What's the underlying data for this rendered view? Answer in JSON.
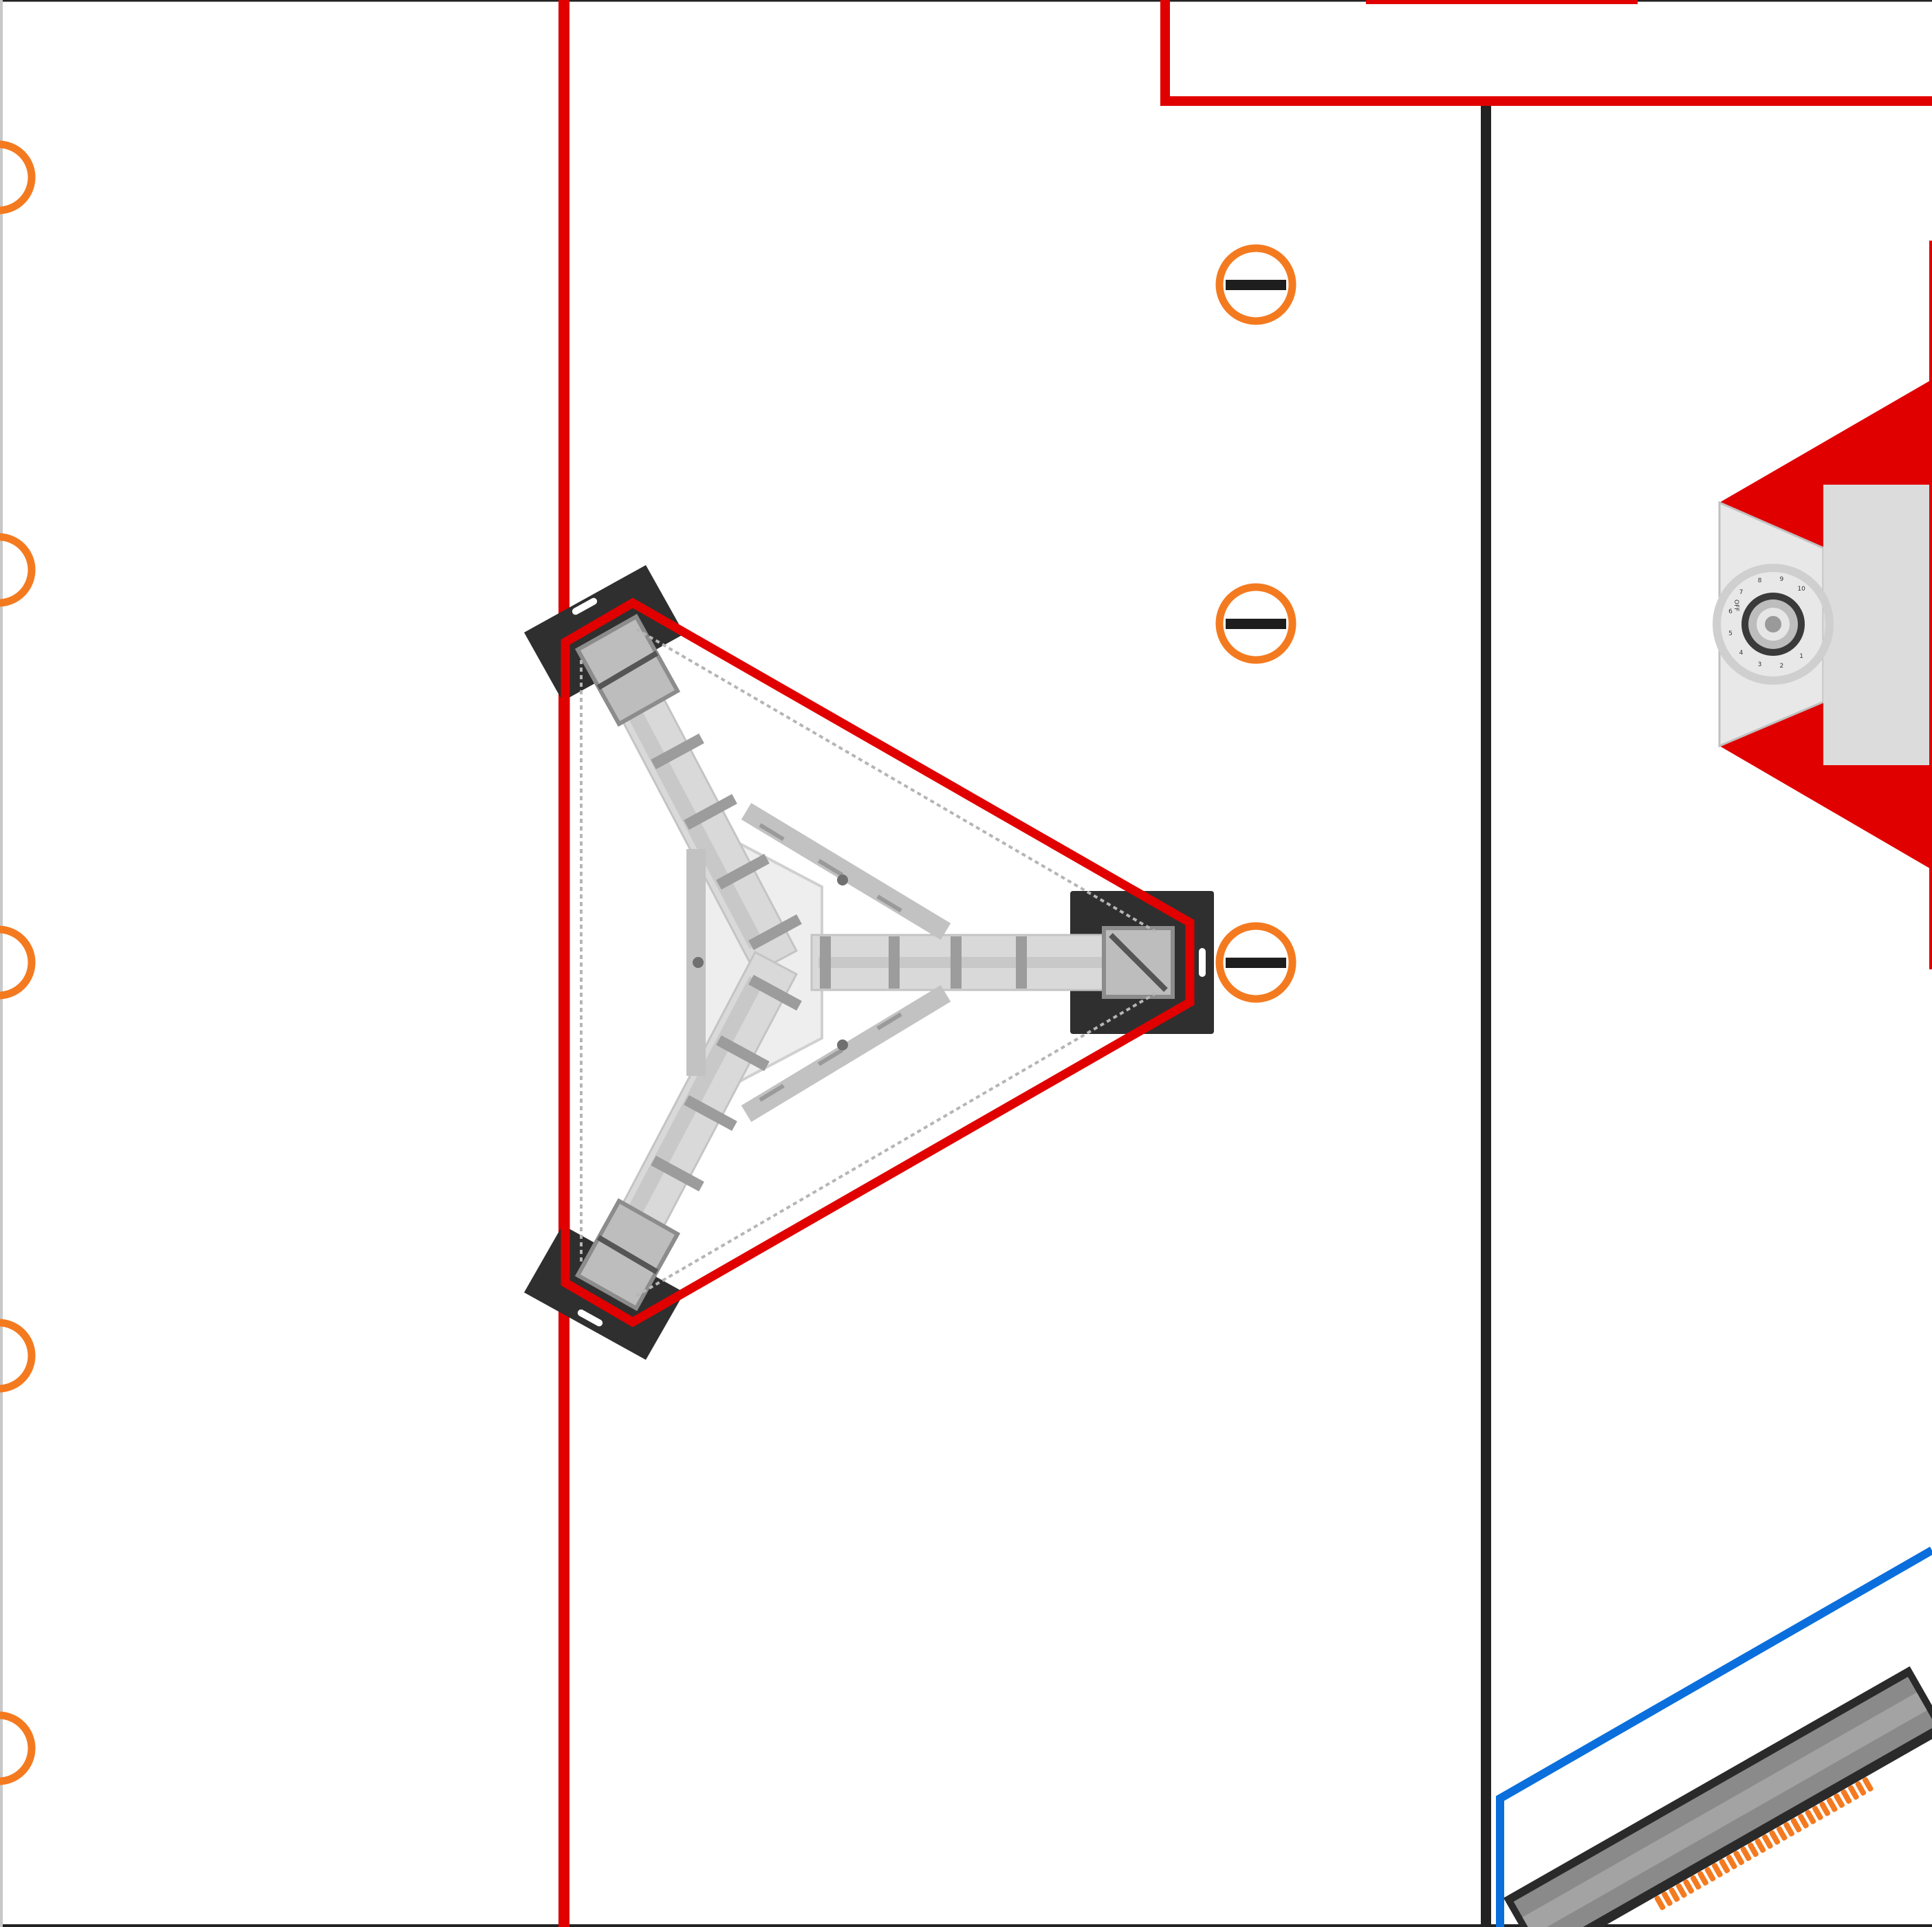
{
  "colors": {
    "background": "#ffffff",
    "zone_line_red": "#e00000",
    "divider_black": "#222222",
    "goal_blue": "#0a6fdc",
    "marker_orange": "#f47a20",
    "pad_black": "#2f2f2f",
    "truss_light": "#d6d6d6",
    "truss_mid": "#a9a9a9",
    "truss_dark": "#8c8c8c",
    "panel_gray": "#dcdcdc"
  },
  "field": {
    "markers_left": [
      "marker",
      "marker",
      "marker",
      "marker",
      "marker"
    ],
    "markers_mid": [
      "marker",
      "marker",
      "marker"
    ]
  },
  "structure": {
    "name": "triangle-truss",
    "feet": [
      "top-left-foot",
      "bottom-left-foot",
      "right-foot"
    ]
  },
  "dial": {
    "label_off": "OFF",
    "numbers": [
      "1",
      "2",
      "3",
      "4",
      "5",
      "6",
      "7",
      "8",
      "9",
      "10"
    ]
  }
}
